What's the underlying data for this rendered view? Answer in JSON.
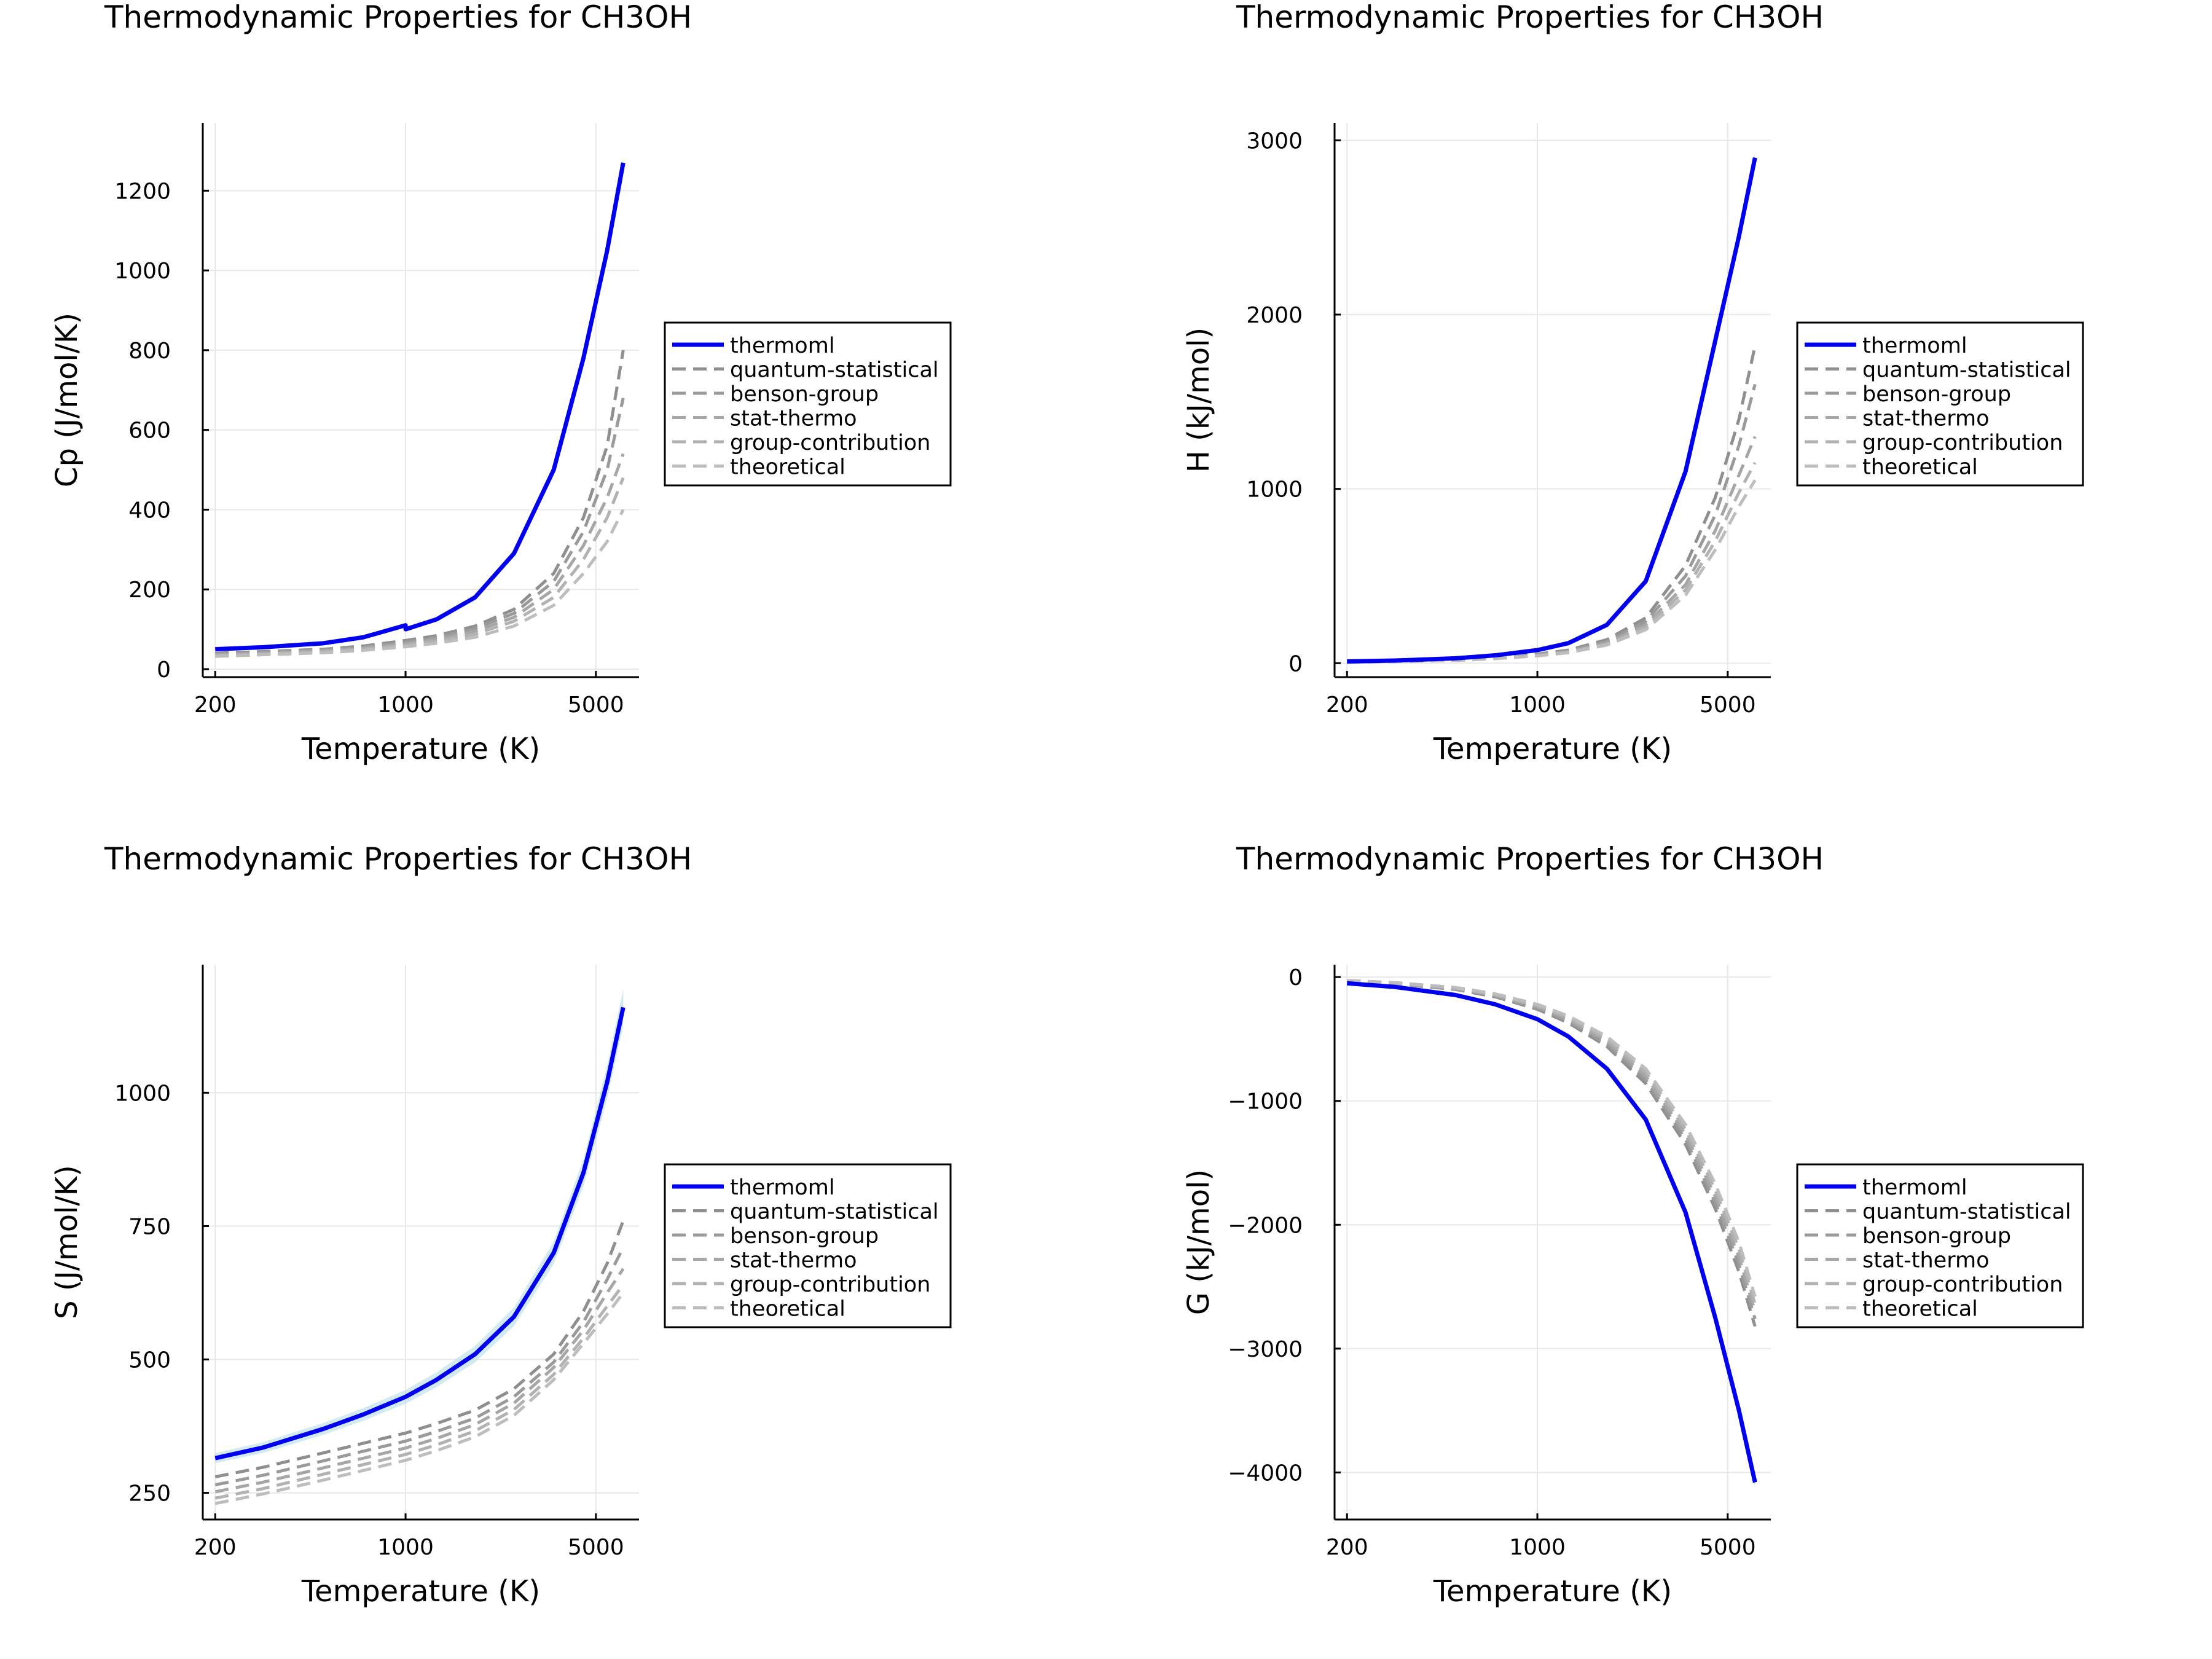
{
  "colors": {
    "thermoml": "#0000ee",
    "band": "#add8e6",
    "baselines": [
      "#8f8f8f",
      "#9a9a9a",
      "#a6a6a6",
      "#b2b2b2",
      "#bdbdbd"
    ],
    "grid": "#e8e8e8",
    "axis": "#000000"
  },
  "chart_data": [
    {
      "type": "line",
      "title": "Thermodynamic Properties for CH3OH",
      "xlabel": "Temperature (K)",
      "ylabel": "Cp (J/mol/K)",
      "xscale": "log",
      "xlim": [
        180,
        7200
      ],
      "ylim": [
        -20,
        1370
      ],
      "xticks": [
        200,
        1000,
        5000
      ],
      "xtick_labels": [
        "200",
        "1000",
        "5000"
      ],
      "yticks": [
        0,
        200,
        400,
        600,
        800,
        1000,
        1200
      ],
      "ytick_labels": [
        "0",
        "200",
        "400",
        "600",
        "800",
        "1000",
        "1200"
      ],
      "grid": true,
      "legend_position": "outer-right",
      "x": [
        200,
        300,
        500,
        700,
        1000,
        1001,
        1300,
        1800,
        2500,
        3500,
        4500,
        5500,
        6300
      ],
      "series": [
        {
          "name": "thermoml",
          "style": "solid",
          "band": 0.01,
          "values": [
            50,
            55,
            65,
            80,
            110,
            100,
            125,
            180,
            290,
            500,
            780,
            1050,
            1270
          ]
        },
        {
          "name": "quantum-statistical",
          "style": "dash",
          "values": [
            40,
            44,
            50,
            58,
            72,
            72,
            84,
            108,
            150,
            240,
            380,
            560,
            800
          ]
        },
        {
          "name": "benson-group",
          "style": "dash",
          "values": [
            38,
            42,
            48,
            55,
            68,
            68,
            80,
            102,
            140,
            220,
            345,
            500,
            680
          ]
        },
        {
          "name": "stat-thermo",
          "style": "dash",
          "values": [
            36,
            40,
            46,
            53,
            64,
            64,
            75,
            95,
            130,
            200,
            310,
            430,
            540
          ]
        },
        {
          "name": "group-contribution",
          "style": "dash",
          "values": [
            34,
            38,
            44,
            50,
            60,
            60,
            70,
            88,
            120,
            180,
            275,
            380,
            480
          ]
        },
        {
          "name": "theoretical",
          "style": "dash",
          "values": [
            32,
            36,
            41,
            47,
            56,
            56,
            65,
            80,
            108,
            160,
            240,
            320,
            400
          ]
        }
      ]
    },
    {
      "type": "line",
      "title": "Thermodynamic Properties for CH3OH",
      "xlabel": "Temperature (K)",
      "ylabel": "H (kJ/mol)",
      "xscale": "log",
      "xlim": [
        180,
        7200
      ],
      "ylim": [
        -80,
        3100
      ],
      "xticks": [
        200,
        1000,
        5000
      ],
      "xtick_labels": [
        "200",
        "1000",
        "5000"
      ],
      "yticks": [
        0,
        1000,
        2000,
        3000
      ],
      "ytick_labels": [
        "0",
        "1000",
        "2000",
        "3000"
      ],
      "grid": true,
      "legend_position": "outer-right",
      "x": [
        200,
        300,
        500,
        700,
        1000,
        1300,
        1800,
        2500,
        3500,
        4500,
        5500,
        6300
      ],
      "series": [
        {
          "name": "thermoml",
          "style": "solid",
          "band": 0.01,
          "values": [
            10,
            15,
            28,
            45,
            75,
            115,
            220,
            470,
            1100,
            1850,
            2450,
            2900
          ]
        },
        {
          "name": "quantum-statistical",
          "style": "dash",
          "values": [
            8,
            12,
            20,
            32,
            52,
            75,
            135,
            260,
            560,
            950,
            1400,
            1820
          ]
        },
        {
          "name": "benson-group",
          "style": "dash",
          "values": [
            7,
            11,
            19,
            30,
            49,
            70,
            125,
            240,
            500,
            850,
            1250,
            1600
          ]
        },
        {
          "name": "stat-thermo",
          "style": "dash",
          "values": [
            6,
            10,
            18,
            28,
            46,
            66,
            116,
            220,
            450,
            760,
            1080,
            1300
          ]
        },
        {
          "name": "group-contribution",
          "style": "dash",
          "values": [
            6,
            9,
            17,
            27,
            44,
            63,
            110,
            205,
            420,
            700,
            980,
            1150
          ]
        },
        {
          "name": "theoretical",
          "style": "dash",
          "values": [
            5,
            9,
            16,
            26,
            42,
            60,
            104,
            192,
            390,
            650,
            900,
            1050
          ]
        }
      ]
    },
    {
      "type": "line",
      "title": "Thermodynamic Properties for CH3OH",
      "xlabel": "Temperature (K)",
      "ylabel": "S (J/mol/K)",
      "xscale": "log",
      "xlim": [
        180,
        7200
      ],
      "ylim": [
        200,
        1240
      ],
      "xticks": [
        200,
        1000,
        5000
      ],
      "xtick_labels": [
        "200",
        "1000",
        "5000"
      ],
      "yticks": [
        250,
        500,
        750,
        1000
      ],
      "ytick_labels": [
        "250",
        "500",
        "750",
        "1000"
      ],
      "grid": true,
      "legend_position": "outer-right",
      "x": [
        200,
        300,
        500,
        700,
        1000,
        1300,
        1800,
        2500,
        3500,
        4500,
        5500,
        6300
      ],
      "series": [
        {
          "name": "thermoml",
          "style": "solid",
          "band": 0.03,
          "values": [
            315,
            335,
            370,
            397,
            430,
            462,
            510,
            580,
            700,
            850,
            1020,
            1160
          ]
        },
        {
          "name": "quantum-statistical",
          "style": "dash",
          "values": [
            280,
            298,
            325,
            343,
            362,
            380,
            405,
            445,
            510,
            590,
            680,
            760
          ]
        },
        {
          "name": "benson-group",
          "style": "dash",
          "values": [
            265,
            283,
            310,
            328,
            347,
            365,
            390,
            430,
            495,
            570,
            650,
            710
          ]
        },
        {
          "name": "stat-thermo",
          "style": "dash",
          "values": [
            252,
            270,
            297,
            315,
            334,
            352,
            378,
            418,
            485,
            555,
            625,
            670
          ]
        },
        {
          "name": "group-contribution",
          "style": "dash",
          "values": [
            240,
            258,
            285,
            303,
            322,
            340,
            366,
            406,
            472,
            540,
            600,
            640
          ]
        },
        {
          "name": "theoretical",
          "style": "dash",
          "values": [
            230,
            248,
            274,
            292,
            311,
            329,
            355,
            395,
            462,
            530,
            585,
            625
          ]
        }
      ]
    },
    {
      "type": "line",
      "title": "Thermodynamic Properties for CH3OH",
      "xlabel": "Temperature (K)",
      "ylabel": "G (kJ/mol)",
      "xscale": "log",
      "xlim": [
        180,
        7200
      ],
      "ylim": [
        -4380,
        100
      ],
      "xticks": [
        200,
        1000,
        5000
      ],
      "xtick_labels": [
        "200",
        "1000",
        "5000"
      ],
      "yticks": [
        0,
        -1000,
        -2000,
        -3000,
        -4000
      ],
      "ytick_labels": [
        "0",
        "−1000",
        "−2000",
        "−3000",
        "−4000"
      ],
      "grid": true,
      "legend_position": "outer-right",
      "x": [
        200,
        300,
        500,
        700,
        1000,
        1300,
        1800,
        2500,
        3500,
        4500,
        5500,
        6300
      ],
      "series": [
        {
          "name": "thermoml",
          "style": "solid",
          "band": 0.01,
          "values": [
            -50,
            -80,
            -145,
            -220,
            -340,
            -480,
            -740,
            -1150,
            -1900,
            -2750,
            -3500,
            -4080
          ]
        },
        {
          "name": "quantum-statistical",
          "style": "dash",
          "values": [
            -35,
            -55,
            -100,
            -160,
            -260,
            -370,
            -560,
            -860,
            -1350,
            -1870,
            -2380,
            -2820
          ]
        },
        {
          "name": "benson-group",
          "style": "dash",
          "values": [
            -33,
            -52,
            -96,
            -153,
            -250,
            -356,
            -540,
            -830,
            -1310,
            -1820,
            -2320,
            -2760
          ]
        },
        {
          "name": "stat-thermo",
          "style": "dash",
          "values": [
            -31,
            -50,
            -92,
            -147,
            -240,
            -342,
            -520,
            -800,
            -1270,
            -1770,
            -2260,
            -2700
          ]
        },
        {
          "name": "group-contribution",
          "style": "dash",
          "values": [
            -29,
            -47,
            -88,
            -141,
            -230,
            -328,
            -500,
            -770,
            -1230,
            -1720,
            -2200,
            -2640
          ]
        },
        {
          "name": "theoretical",
          "style": "dash",
          "values": [
            -27,
            -45,
            -84,
            -135,
            -220,
            -314,
            -480,
            -740,
            -1190,
            -1670,
            -2140,
            -2580
          ]
        }
      ]
    }
  ]
}
